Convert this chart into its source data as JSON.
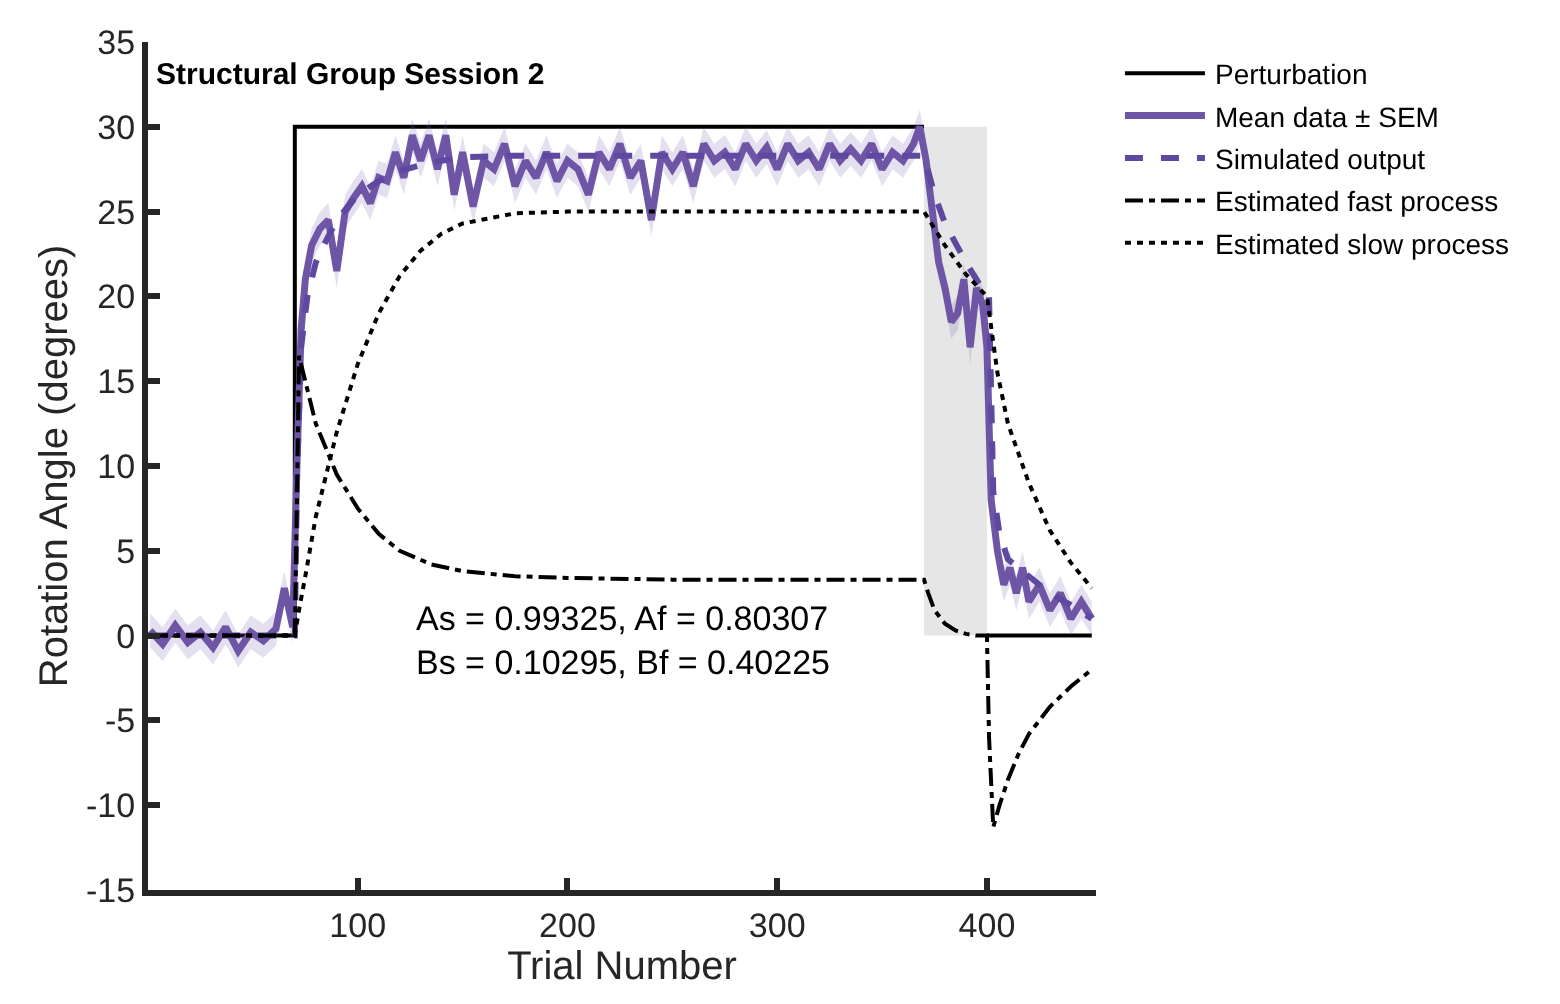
{
  "chart_data": {
    "type": "line",
    "title": "Structural Group Session 2",
    "xlabel": "Trial Number",
    "ylabel": "Rotation Angle (degrees)",
    "xlim": [
      0,
      452
    ],
    "xticks": [
      100,
      200,
      300,
      400
    ],
    "ylim": [
      -15,
      35
    ],
    "yticks": [
      -15,
      -10,
      -5,
      0,
      5,
      10,
      15,
      20,
      25,
      30,
      35
    ],
    "grid": false,
    "legend": "top right",
    "marker": "none",
    "bands": [
      {
        "axis": "x",
        "from": 370,
        "to": 400,
        "color": "#e6e6e6"
      }
    ],
    "annotations": [
      "As = 0.99325, Af = 0.80307\nBs = 0.10295, Bf = 0.40225"
    ],
    "series": [
      {
        "name": "Perturbation",
        "color": "#000000",
        "line_style": "solid",
        "x": [
          1,
          70,
          70,
          370,
          385,
          400,
          450
        ],
        "values": [
          0,
          0,
          30,
          30,
          null,
          0,
          0
        ]
      },
      {
        "name": "Mean data ± SEM",
        "color": "#6e55a6",
        "line_style": "solid",
        "x": [
          1,
          7,
          13,
          19,
          25,
          31,
          37,
          43,
          49,
          55,
          61,
          65,
          69,
          71,
          73,
          75,
          78,
          82,
          86,
          90,
          94,
          98,
          102,
          106,
          110,
          114,
          118,
          122,
          126,
          130,
          134,
          138,
          142,
          146,
          150,
          155,
          160,
          165,
          170,
          175,
          180,
          185,
          190,
          195,
          200,
          205,
          210,
          215,
          220,
          225,
          230,
          235,
          240,
          245,
          250,
          255,
          260,
          265,
          270,
          275,
          280,
          285,
          290,
          295,
          300,
          305,
          310,
          315,
          320,
          325,
          330,
          335,
          340,
          345,
          350,
          355,
          360,
          365,
          368,
          371,
          374,
          377,
          380,
          383,
          386,
          389,
          392,
          395,
          398,
          400,
          402,
          405,
          408,
          411,
          414,
          417,
          420,
          425,
          430,
          435,
          440,
          445,
          450
        ],
        "values": [
          0.3,
          -0.5,
          0.6,
          -0.4,
          0.2,
          -0.7,
          0.5,
          -0.9,
          0.2,
          -0.3,
          0.4,
          2.8,
          0.5,
          10,
          18,
          21,
          23,
          24,
          24.5,
          21.5,
          25,
          25.8,
          26.5,
          25.5,
          27,
          26.8,
          28.5,
          27,
          29.5,
          28,
          29.5,
          27.5,
          29.5,
          26,
          28.5,
          25.3,
          28,
          27.5,
          29,
          26.5,
          28,
          27,
          28.5,
          26.8,
          28,
          27.5,
          26,
          28.5,
          27.5,
          29,
          27,
          28,
          24.5,
          28.5,
          27.5,
          28.5,
          26.5,
          29,
          28,
          28.5,
          27.5,
          29,
          28,
          28.8,
          27.5,
          29,
          28,
          28.5,
          27.5,
          29,
          28,
          28.7,
          28,
          29,
          27.5,
          28.5,
          28,
          29,
          30,
          28,
          25,
          22,
          20.5,
          18.5,
          19,
          21,
          17,
          20.5,
          19.5,
          17,
          8,
          5,
          3,
          4,
          2.5,
          4,
          2,
          3,
          1.5,
          2.5,
          1,
          2,
          1
        ],
        "lower": [
          -0.7,
          -1.5,
          -0.4,
          -1.4,
          -0.8,
          -1.7,
          -0.5,
          -1.9,
          -0.8,
          -1.3,
          -0.6,
          1.8,
          -0.5,
          9,
          17,
          20,
          22,
          23,
          23.5,
          20.5,
          24,
          24.8,
          25.5,
          24.5,
          26,
          25.8,
          27.5,
          26,
          28.5,
          27,
          28.5,
          26.5,
          28.5,
          25,
          27.5,
          24.3,
          27,
          26.5,
          28,
          25.5,
          27,
          26,
          27.5,
          25.8,
          27,
          26.5,
          25,
          27.5,
          26.5,
          28,
          26,
          27,
          23.5,
          27.5,
          26.5,
          27.5,
          25.5,
          28,
          27,
          27.5,
          26.5,
          28,
          27,
          27.8,
          26.5,
          28,
          27,
          27.5,
          26.5,
          28,
          27,
          27.7,
          27,
          28,
          26.5,
          27.5,
          27,
          28,
          29,
          27,
          24,
          21,
          19.5,
          17.5,
          18,
          20,
          16,
          19.5,
          18.5,
          16,
          7,
          4,
          2,
          3,
          1.5,
          3,
          1,
          2,
          0.5,
          1.5,
          0,
          1,
          0
        ],
        "upper": [
          1.3,
          0.5,
          1.6,
          0.6,
          1.2,
          0.3,
          1.5,
          0.1,
          1.2,
          0.7,
          1.4,
          3.8,
          1.5,
          11,
          19,
          22,
          24,
          25,
          25.5,
          22.5,
          26,
          26.8,
          27.5,
          26.5,
          28,
          27.8,
          29.5,
          28,
          30.5,
          29,
          30.5,
          28.5,
          30.5,
          27,
          29.5,
          26.3,
          29,
          28.5,
          30,
          27.5,
          29,
          28,
          29.5,
          27.8,
          29,
          28.5,
          27,
          29.5,
          28.5,
          30,
          28,
          29,
          25.5,
          29.5,
          28.5,
          29.5,
          27.5,
          30,
          29,
          29.5,
          28.5,
          30,
          29,
          29.8,
          28.5,
          30,
          29,
          29.5,
          28.5,
          30,
          29,
          29.7,
          29,
          30,
          28.5,
          29.5,
          29,
          30,
          31,
          29,
          26,
          23,
          21.5,
          19.5,
          20,
          22,
          18,
          21.5,
          20.5,
          18,
          9,
          6,
          4,
          5,
          3.5,
          5,
          3,
          4,
          2.5,
          3.5,
          2,
          3,
          2
        ]
      },
      {
        "name": "Simulated output",
        "color": "#5e48a0",
        "line_style": "dashed",
        "x": [
          1,
          70,
          71,
          73,
          76,
          80,
          85,
          90,
          100,
          110,
          120,
          135,
          150,
          175,
          200,
          370,
          375,
          380,
          390,
          400,
          401,
          403,
          406,
          410,
          420,
          430,
          440,
          450
        ],
        "values": [
          0,
          0,
          9,
          17,
          20,
          22,
          23.3,
          24.5,
          26,
          26.8,
          27.4,
          27.9,
          28.2,
          28.3,
          28.3,
          28.3,
          26,
          24.3,
          22,
          20,
          20,
          8.5,
          6,
          4.5,
          3.5,
          2.5,
          1.8,
          1
        ]
      },
      {
        "name": "Estimated fast process",
        "color": "#000000",
        "line_style": "dashdot",
        "x": [
          1,
          70,
          71,
          72,
          75,
          80,
          90,
          100,
          110,
          120,
          135,
          150,
          175,
          200,
          250,
          370,
          372,
          375,
          380,
          385,
          390,
          395,
          400,
          401,
          403,
          406,
          410,
          415,
          420,
          430,
          440,
          450
        ],
        "values": [
          0,
          0,
          8,
          16.5,
          15,
          12.5,
          9.5,
          7.5,
          6,
          5,
          4.2,
          3.8,
          3.5,
          3.4,
          3.3,
          3.3,
          2.5,
          1.5,
          0.7,
          0.3,
          0.1,
          0,
          0,
          -6,
          -11.3,
          -10,
          -8.5,
          -7,
          -5.8,
          -4.2,
          -3,
          -2
        ]
      },
      {
        "name": "Estimated slow process",
        "color": "#000000",
        "line_style": "dotted",
        "x": [
          1,
          70,
          72,
          75,
          80,
          85,
          90,
          100,
          110,
          120,
          130,
          140,
          150,
          175,
          200,
          370,
          375,
          380,
          390,
          400,
          405,
          410,
          420,
          430,
          440,
          450
        ],
        "values": [
          0,
          0,
          1.5,
          3.5,
          7,
          9.5,
          12,
          16,
          19,
          21.2,
          22.7,
          23.7,
          24.3,
          24.9,
          25,
          25,
          24,
          23,
          21.3,
          20,
          15.5,
          12.5,
          9,
          6.2,
          4.3,
          2.8
        ]
      }
    ]
  }
}
